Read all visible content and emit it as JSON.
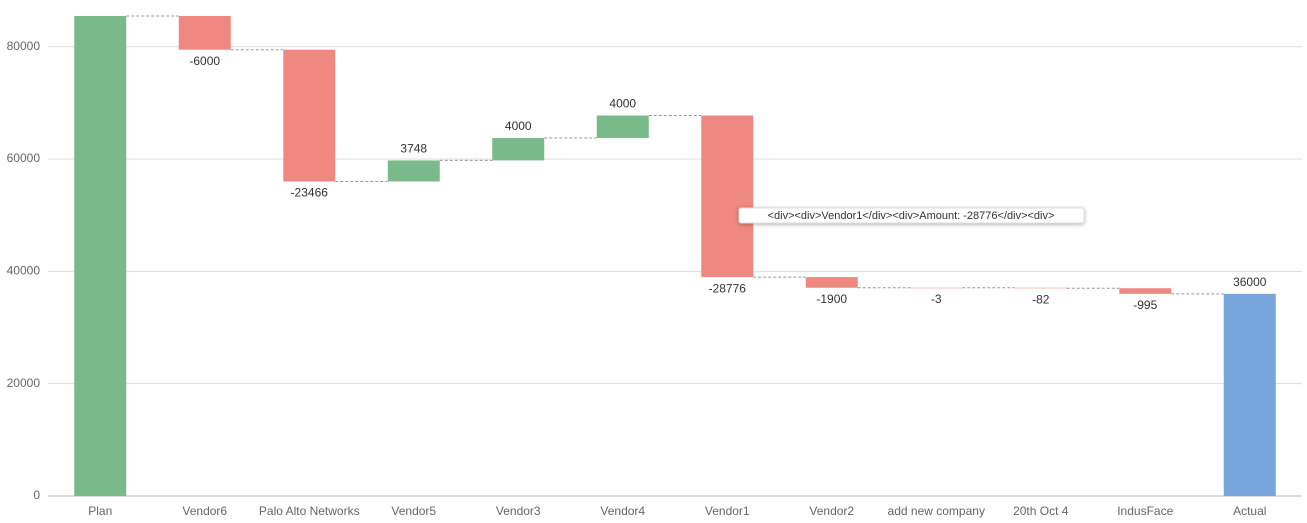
{
  "chart_data": {
    "type": "waterfall",
    "categories": [
      "Plan",
      "Vendor6",
      "Palo Alto Networks",
      "Vendor5",
      "Vendor3",
      "Vendor4",
      "Vendor1",
      "Vendor2",
      "add new company",
      "20th Oct 4",
      "IndusFace",
      "Actual"
    ],
    "values": [
      85474,
      -6000,
      -23466,
      3748,
      4000,
      4000,
      -28776,
      -1900,
      -3,
      -82,
      -995,
      36000
    ],
    "value_labels": [
      null,
      "-6000",
      "-23466",
      "3748",
      "4000",
      "4000",
      "-28776",
      "-1900",
      "-3",
      "-82",
      "-995",
      "36000"
    ],
    "kinds": [
      "total",
      "decrease",
      "decrease",
      "increase",
      "increase",
      "increase",
      "decrease",
      "decrease",
      "decrease",
      "decrease",
      "decrease",
      "total"
    ],
    "colors": {
      "increase": "#7ab98a",
      "decrease": "#f08882",
      "total": "#78a6dc",
      "first": "#7ab98a"
    },
    "ylim": [
      0,
      85474
    ],
    "yticks": [
      0,
      20000,
      40000,
      60000,
      80000
    ],
    "grid": true,
    "tooltip": "<div><div>Vendor1</div><div>Amount: -28776</div><div>"
  }
}
